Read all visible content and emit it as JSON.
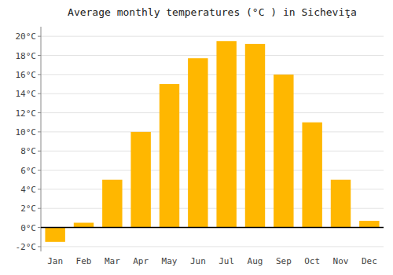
{
  "chart_data": {
    "type": "bar",
    "title": "Average monthly temperatures (°C ) in Sicheviţa",
    "categories": [
      "Jan",
      "Feb",
      "Mar",
      "Apr",
      "May",
      "Jun",
      "Jul",
      "Aug",
      "Sep",
      "Oct",
      "Nov",
      "Dec"
    ],
    "values": [
      -1.5,
      0.5,
      5.0,
      10.0,
      15.0,
      17.7,
      19.5,
      19.2,
      16.0,
      11.0,
      5.0,
      0.7
    ],
    "color": "#FFB700",
    "ylim": [
      -2.5,
      21.0
    ],
    "yticks": [
      {
        "value": -2,
        "label": "-2°C"
      },
      {
        "value": 0,
        "label": "0°C"
      },
      {
        "value": 2,
        "label": "2°C"
      },
      {
        "value": 4,
        "label": "4°C"
      },
      {
        "value": 6,
        "label": "6°C"
      },
      {
        "value": 8,
        "label": "8°C"
      },
      {
        "value": 10,
        "label": "10°C"
      },
      {
        "value": 12,
        "label": "12°C"
      },
      {
        "value": 14,
        "label": "14°C"
      },
      {
        "value": 16,
        "label": "16°C"
      },
      {
        "value": 18,
        "label": "18°C"
      },
      {
        "value": 20,
        "label": "20°C"
      }
    ],
    "grid": true
  }
}
